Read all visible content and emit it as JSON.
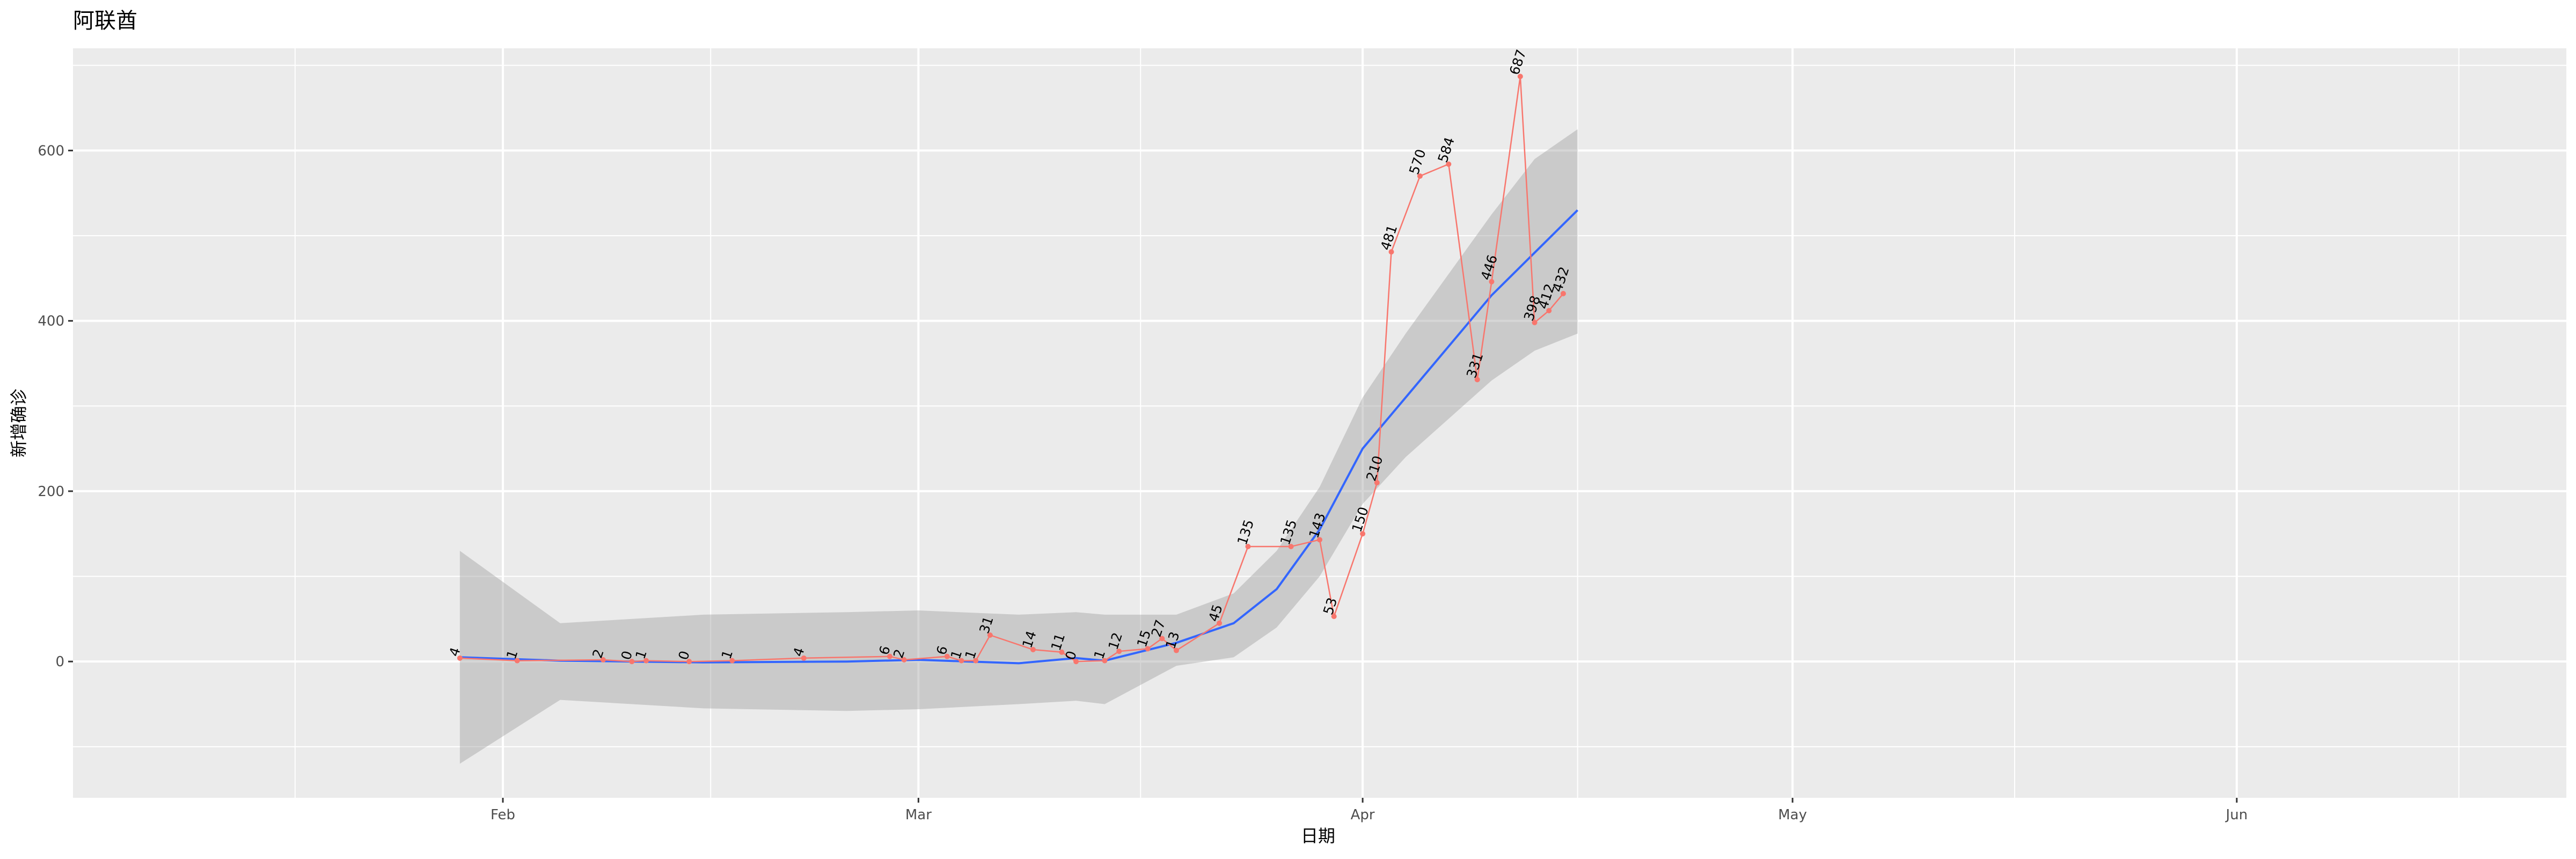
{
  "chart_data": {
    "type": "line",
    "title": "阿联酋",
    "xlabel": "日期",
    "ylabel": "新增确诊",
    "x_tick_labels": [
      "Feb",
      "Mar",
      "Apr",
      "May",
      "Jun"
    ],
    "x_tick_dates": [
      "2020-02-01",
      "2020-03-01",
      "2020-04-01",
      "2020-05-01",
      "2020-06-01"
    ],
    "xlim": [
      "2020-01-02",
      "2020-06-24"
    ],
    "y_ticks": [
      0,
      200,
      400,
      600
    ],
    "ylim": [
      -160,
      720
    ],
    "grid": true,
    "legend": "none",
    "colors": {
      "series": "#F8766D",
      "smooth": "#3366FF",
      "ribbon": "#999999",
      "panel": "#EBEBEB",
      "gridline": "#FFFFFF"
    },
    "series": [
      {
        "x": [
          "2020-01-29",
          "2020-02-02",
          "2020-02-08",
          "2020-02-10",
          "2020-02-11",
          "2020-02-14",
          "2020-02-17",
          "2020-02-22",
          "2020-02-28",
          "2020-02-29",
          "2020-03-03",
          "2020-03-04",
          "2020-03-05",
          "2020-03-06",
          "2020-03-09",
          "2020-03-11",
          "2020-03-12",
          "2020-03-14",
          "2020-03-15",
          "2020-03-17",
          "2020-03-18",
          "2020-03-19",
          "2020-03-22",
          "2020-03-24",
          "2020-03-27",
          "2020-03-29",
          "2020-03-30",
          "2020-04-01",
          "2020-04-02",
          "2020-04-03",
          "2020-04-05",
          "2020-04-07",
          "2020-04-09",
          "2020-04-10",
          "2020-04-12",
          "2020-04-13",
          "2020-04-14",
          "2020-04-15"
        ],
        "values": [
          4,
          1,
          2,
          0,
          1,
          0,
          1,
          4,
          6,
          2,
          6,
          1,
          1,
          31,
          14,
          11,
          0,
          1,
          12,
          15,
          27,
          13,
          45,
          135,
          135,
          143,
          53,
          150,
          210,
          481,
          570,
          584,
          331,
          446,
          687,
          398,
          412,
          432
        ]
      }
    ],
    "smooth": {
      "x": [
        "2020-01-29",
        "2020-02-05",
        "2020-02-15",
        "2020-02-25",
        "2020-03-01",
        "2020-03-08",
        "2020-03-12",
        "2020-03-14",
        "2020-03-19",
        "2020-03-23",
        "2020-03-26",
        "2020-03-29",
        "2020-04-01",
        "2020-04-04",
        "2020-04-07",
        "2020-04-10",
        "2020-04-13",
        "2020-04-16"
      ],
      "y": [
        5,
        1,
        -1,
        0,
        2,
        -2,
        4,
        1,
        22,
        45,
        85,
        155,
        250,
        310,
        370,
        430,
        480,
        530
      ],
      "ymin": [
        -120,
        -45,
        -55,
        -58,
        -56,
        -50,
        -46,
        -50,
        -5,
        5,
        40,
        100,
        185,
        240,
        285,
        330,
        365,
        385
      ],
      "ymax": [
        130,
        45,
        55,
        58,
        60,
        55,
        58,
        55,
        55,
        80,
        130,
        205,
        310,
        385,
        455,
        525,
        590,
        625
      ]
    }
  }
}
